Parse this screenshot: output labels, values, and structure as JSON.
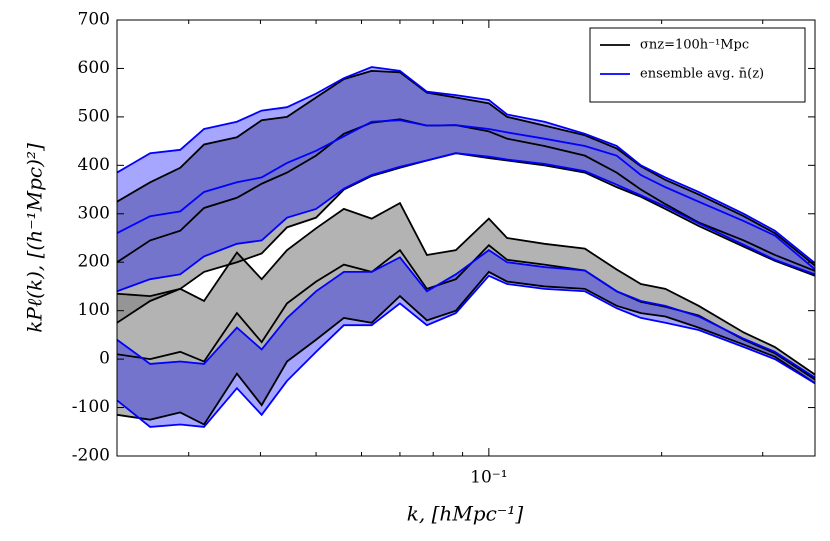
{
  "chart_data": {
    "type": "band",
    "xlabel": "k, [hMpc⁻¹]",
    "ylabel": "kPℓ(k), [(h⁻¹Mpc)²]",
    "xscale": "log",
    "legend": "upper right",
    "x": [
      0.0225,
      0.0257,
      0.029,
      0.0319,
      0.0364,
      0.0402,
      0.0445,
      0.05,
      0.0559,
      0.0625,
      0.07,
      0.078,
      0.0876,
      0.1,
      0.1076,
      0.125,
      0.147,
      0.167,
      0.184,
      0.203,
      0.232,
      0.278,
      0.315,
      0.37
    ],
    "xlim": [
      0.0225,
      0.37
    ],
    "ylim": [
      -200,
      700
    ],
    "xticks": [
      {
        "value": 0.1,
        "label": "10⁻¹"
      }
    ],
    "xminor": [
      0.03,
      0.04,
      0.05,
      0.06,
      0.07,
      0.08,
      0.09,
      0.2,
      0.3
    ],
    "yticks": [
      -200,
      -100,
      0,
      100,
      200,
      300,
      400,
      500,
      600,
      700
    ],
    "series": [
      {
        "name": "σnz=100h⁻¹Mpc",
        "color": "#000000",
        "fill": "#808080",
        "bands": [
          {
            "upper": [
              325,
              365,
              395,
              443,
              458,
              493,
              500,
              540,
              578,
              595,
              592,
              550,
              540,
              528,
              500,
              482,
              462,
              435,
              398,
              370,
              340,
              295,
              260,
              193
            ],
            "values": [
              200,
              245,
              265,
              312,
              333,
              362,
              385,
              420,
              465,
              488,
              495,
              482,
              483,
              470,
              455,
              440,
              420,
              385,
              350,
              320,
              282,
              245,
              215,
              182
            ],
            "lower": [
              75,
              120,
              145,
              180,
              200,
              218,
              272,
              292,
              350,
              378,
              395,
              410,
              425,
              415,
              410,
              400,
              385,
              355,
              335,
              310,
              275,
              232,
              203,
              172
            ]
          },
          {
            "upper": [
              135,
              130,
              145,
              120,
              220,
              165,
              225,
              270,
              310,
              290,
              322,
              215,
              225,
              290,
              250,
              238,
              228,
              185,
              155,
              145,
              110,
              55,
              25,
              -32
            ],
            "values": [
              10,
              0,
              15,
              -5,
              95,
              35,
              115,
              160,
              195,
              180,
              225,
              145,
              165,
              235,
              205,
              195,
              183,
              140,
              118,
              108,
              90,
              40,
              12,
              -42
            ],
            "lower": [
              -115,
              -125,
              -110,
              -135,
              -30,
              -95,
              -5,
              40,
              85,
              75,
              130,
              80,
              100,
              180,
              160,
              150,
              145,
              110,
              95,
              88,
              65,
              30,
              5,
              -50
            ]
          }
        ]
      },
      {
        "name": "ensemble avg. n̄(z)",
        "color": "#0000ff",
        "fill": "#0000ff",
        "bands": [
          {
            "upper": [
              385,
              425,
              432,
              475,
              490,
              513,
              520,
              548,
              580,
              603,
              595,
              552,
              545,
              535,
              505,
              490,
              465,
              440,
              400,
              375,
              345,
              300,
              265,
              198
            ],
            "values": [
              260,
              295,
              305,
              345,
              365,
              375,
              405,
              430,
              460,
              490,
              493,
              482,
              483,
              475,
              468,
              455,
              440,
              420,
              380,
              355,
              325,
              285,
              255,
              185
            ],
            "lower": [
              140,
              165,
              175,
              212,
              238,
              245,
              292,
              310,
              352,
              380,
              397,
              410,
              425,
              418,
              412,
              403,
              388,
              360,
              338,
              315,
              280,
              236,
              205,
              175
            ]
          },
          {
            "upper": [
              40,
              -10,
              -5,
              -10,
              65,
              20,
              85,
              140,
              180,
              180,
              210,
              140,
              175,
              225,
              200,
              190,
              183,
              140,
              120,
              110,
              88,
              42,
              15,
              -38
            ],
            "lower": [
              -85,
              -140,
              -135,
              -140,
              -60,
              -115,
              -45,
              15,
              70,
              70,
              115,
              70,
              95,
              172,
              155,
              145,
              140,
              105,
              85,
              75,
              60,
              25,
              0,
              -50
            ]
          }
        ]
      }
    ]
  }
}
